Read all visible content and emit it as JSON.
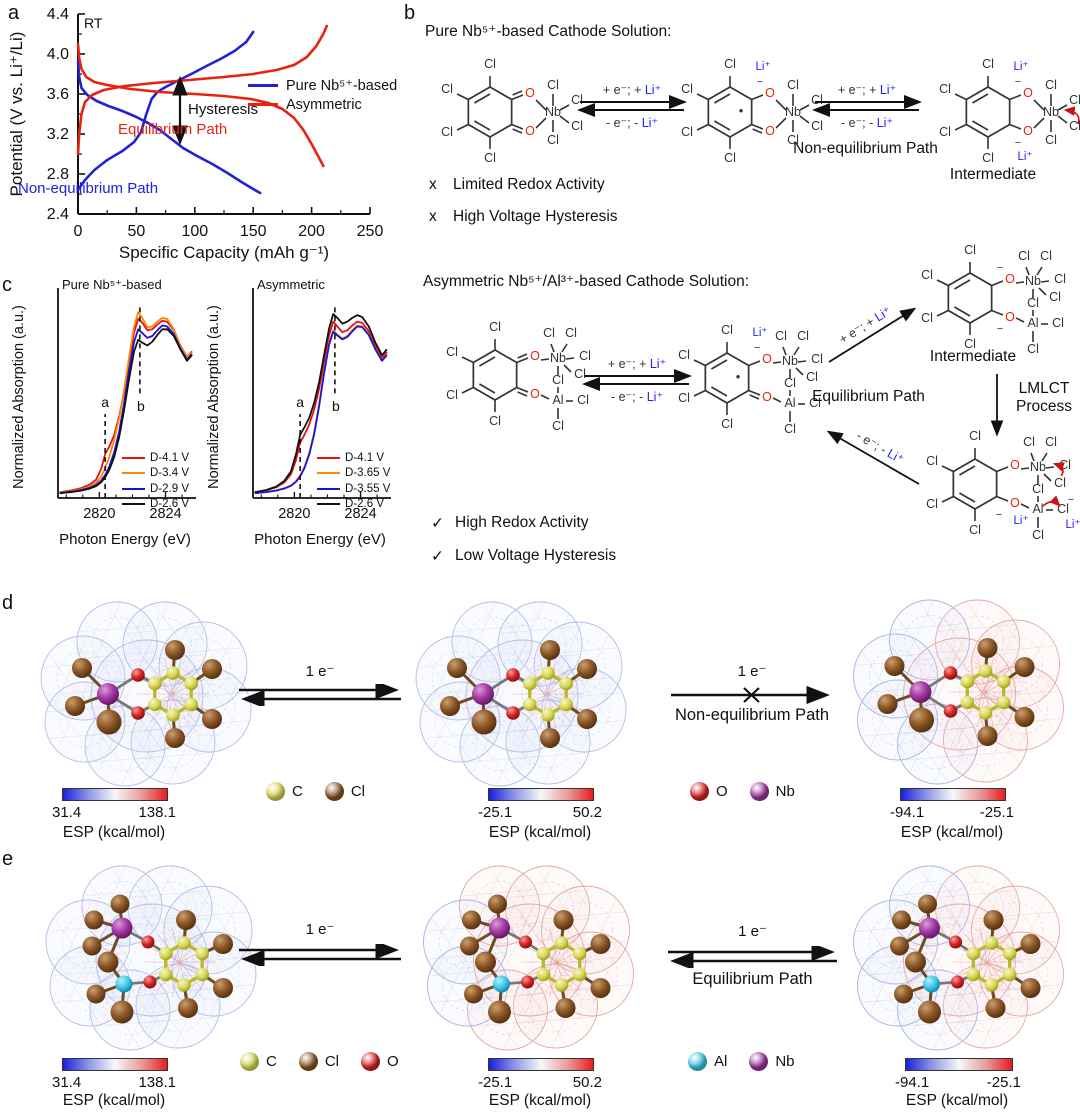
{
  "panels": {
    "a": "a",
    "b": "b",
    "c": "c",
    "d": "d",
    "e": "e"
  },
  "atoms": {
    "cl": "Cl",
    "o": "O",
    "nb": "Nb",
    "al": "Al",
    "li": "Li⁺",
    "minus": "−",
    "radical": "•"
  },
  "element_colors": {
    "C": "#d9d958",
    "Cl": "#8a5424",
    "O": "#d62222",
    "Nb": "#a035a0",
    "Al": "#3cc8e8"
  },
  "panel_a": {
    "corner_note": "RT",
    "ylabel": "Potential (V vs. Li⁺/Li)",
    "xlabel": "Specific Capacity (mAh g⁻¹)",
    "legend": [
      {
        "label": "Pure Nb⁵⁺-based",
        "color": "#2121d6"
      },
      {
        "label": "Asymmetric",
        "color": "#e8220f"
      }
    ],
    "ann_hysteresis": "Hysteresis",
    "ann_equilibrium": "Equilibrium Path",
    "ann_non_equilibrium": "Non-equilibrium Path"
  },
  "panel_b": {
    "title_pure": "Pure Nb⁵⁺-based Cathode Solution:",
    "title_asym": "Asymmetric Nb⁵⁺/Al³⁺-based Cathode Solution:",
    "fwd_pre": "+ e⁻; + ",
    "bwd_pre": "- e⁻; - ",
    "li": "Li⁺",
    "non_eq_path": "Non-equilibrium Path",
    "eq_path": "Equilibrium Path",
    "intermediate1": "Intermediate",
    "intermediate2": "Intermediate",
    "lmlct1": "LMLCT",
    "lmlct2": "Process",
    "cons": [
      {
        "mark": "x",
        "text": "Limited Redox Activity"
      },
      {
        "mark": "x",
        "text": "High Voltage Hysteresis"
      }
    ],
    "pros": [
      {
        "mark": "✓",
        "text": "High Redox Activity"
      },
      {
        "mark": "✓",
        "text": "Low Voltage Hysteresis"
      }
    ]
  },
  "panel_c": {
    "ylabel": "Normalized Absorption (a.u.)",
    "xlabel": "Photon Energy (eV)",
    "plot1_title": "Pure Nb⁵⁺-based",
    "plot2_title": "Asymmetric",
    "mark_a": "a",
    "mark_b": "b",
    "legend1": [
      {
        "label": "D-4.1 V",
        "color": "#e81010"
      },
      {
        "label": "D-3.4 V",
        "color": "#ff8800"
      },
      {
        "label": "D-2.9 V",
        "color": "#1515e0"
      },
      {
        "label": "D-2.6 V",
        "color": "#111111"
      }
    ],
    "legend2": [
      {
        "label": "D-4.1 V",
        "color": "#e81010"
      },
      {
        "label": "D-3.65 V",
        "color": "#ff8800"
      },
      {
        "label": "D-3.55 V",
        "color": "#1515e0"
      },
      {
        "label": "D-2.6 V",
        "color": "#111111"
      }
    ]
  },
  "panel_d": {
    "arrow1": "1 e⁻",
    "arrow2": "1 e⁻",
    "arrow2_sub": "Non-equilibrium Path",
    "bars": [
      {
        "min": "31.4",
        "max": "138.1",
        "title": "ESP (kcal/mol)"
      },
      {
        "min": "-25.1",
        "max": "50.2",
        "title": "ESP (kcal/mol)"
      },
      {
        "min": "-94.1",
        "max": "-25.1",
        "title": "ESP (kcal/mol)"
      }
    ],
    "legendA": [
      {
        "symbol": "C"
      },
      {
        "symbol": "Cl"
      }
    ],
    "legendB": [
      {
        "symbol": "O"
      },
      {
        "symbol": "Nb"
      }
    ]
  },
  "panel_e": {
    "arrow1": "1 e⁻",
    "arrow2": "1 e⁻",
    "arrow2_sub": "Equilibrium Path",
    "bars": [
      {
        "min": "31.4",
        "max": "138.1",
        "title": "ESP (kcal/mol)"
      },
      {
        "min": "-25.1",
        "max": "50.2",
        "title": "ESP (kcal/mol)"
      },
      {
        "min": "-94.1",
        "max": "-25.1",
        "title": "ESP (kcal/mol)"
      }
    ],
    "legendA": [
      {
        "symbol": "C"
      },
      {
        "symbol": "Cl"
      },
      {
        "symbol": "O"
      }
    ],
    "legendB": [
      {
        "symbol": "Al"
      },
      {
        "symbol": "Nb"
      }
    ]
  },
  "chart_data": [
    {
      "id": "galvanostatic",
      "type": "line",
      "title": "",
      "xlabel": "Specific Capacity (mAh g⁻¹)",
      "ylabel": "Potential (V vs. Li⁺/Li)",
      "xlim": [
        0,
        250
      ],
      "ylim": [
        2.4,
        4.4
      ],
      "xticks": [
        0,
        50,
        100,
        150,
        200,
        250
      ],
      "xtick_labels": [
        "0",
        "50",
        "100",
        "150",
        "200",
        "250"
      ],
      "yticks": [
        2.4,
        2.8,
        3.2,
        3.6,
        4.0,
        4.4
      ],
      "ytick_labels": [
        "2.4",
        "2.8",
        "3.2",
        "3.6",
        "4.0",
        "4.4"
      ],
      "grid": false,
      "legend_position": "right-middle",
      "series": [
        {
          "name": "Pure Nb⁵⁺-based charge",
          "color": "#2121d6",
          "points": [
            [
              0,
              2.64
            ],
            [
              6,
              2.74
            ],
            [
              14,
              2.84
            ],
            [
              25,
              2.94
            ],
            [
              38,
              3.03
            ],
            [
              48,
              3.12
            ],
            [
              54,
              3.22
            ],
            [
              58,
              3.38
            ],
            [
              63,
              3.55
            ],
            [
              68,
              3.62
            ],
            [
              75,
              3.67
            ],
            [
              85,
              3.73
            ],
            [
              97,
              3.8
            ],
            [
              110,
              3.88
            ],
            [
              122,
              3.95
            ],
            [
              134,
              4.03
            ],
            [
              144,
              4.12
            ],
            [
              150,
              4.22
            ]
          ]
        },
        {
          "name": "Pure Nb⁵⁺-based discharge",
          "color": "#2121d6",
          "points": [
            [
              0,
              3.93
            ],
            [
              1,
              3.77
            ],
            [
              3,
              3.66
            ],
            [
              8,
              3.59
            ],
            [
              16,
              3.53
            ],
            [
              26,
              3.48
            ],
            [
              38,
              3.43
            ],
            [
              50,
              3.37
            ],
            [
              60,
              3.31
            ],
            [
              70,
              3.24
            ],
            [
              80,
              3.15
            ],
            [
              90,
              3.06
            ],
            [
              102,
              2.98
            ],
            [
              115,
              2.9
            ],
            [
              128,
              2.81
            ],
            [
              140,
              2.72
            ],
            [
              150,
              2.65
            ],
            [
              156,
              2.61
            ]
          ]
        },
        {
          "name": "Asymmetric charge",
          "color": "#e8220f",
          "points": [
            [
              0,
              3.0
            ],
            [
              1,
              3.2
            ],
            [
              3,
              3.4
            ],
            [
              6,
              3.52
            ],
            [
              12,
              3.59
            ],
            [
              22,
              3.64
            ],
            [
              40,
              3.68
            ],
            [
              65,
              3.71
            ],
            [
              95,
              3.74
            ],
            [
              125,
              3.77
            ],
            [
              150,
              3.8
            ],
            [
              170,
              3.84
            ],
            [
              185,
              3.89
            ],
            [
              196,
              3.97
            ],
            [
              204,
              4.08
            ],
            [
              210,
              4.2
            ],
            [
              213,
              4.28
            ]
          ]
        },
        {
          "name": "Asymmetric discharge",
          "color": "#e8220f",
          "points": [
            [
              0,
              4.1
            ],
            [
              1,
              3.96
            ],
            [
              3,
              3.85
            ],
            [
              7,
              3.77
            ],
            [
              14,
              3.72
            ],
            [
              25,
              3.69
            ],
            [
              45,
              3.65
            ],
            [
              70,
              3.62
            ],
            [
              100,
              3.6
            ],
            [
              125,
              3.58
            ],
            [
              148,
              3.55
            ],
            [
              163,
              3.51
            ],
            [
              175,
              3.45
            ],
            [
              185,
              3.36
            ],
            [
              193,
              3.24
            ],
            [
              200,
              3.1
            ],
            [
              206,
              2.97
            ],
            [
              210,
              2.88
            ]
          ]
        }
      ],
      "annotations": [
        "RT",
        "Hysteresis",
        "Equilibrium Path",
        "Non-equilibrium Path"
      ]
    },
    {
      "id": "xas-pure",
      "type": "line",
      "title": "Pure Nb⁵⁺-based",
      "xlabel": "Photon Energy (eV)",
      "ylabel": "Normalized Absorption (a.u.)",
      "xlim": [
        2817.5,
        2825.6
      ],
      "ylim": [
        0,
        1.06
      ],
      "xticks": [
        2820,
        2824
      ],
      "xtick_labels": [
        "2820",
        "2824"
      ],
      "minor_xticks": [
        2818,
        2819,
        2821,
        2822,
        2823,
        2825
      ],
      "dashed_marks": [
        {
          "label": "a",
          "x": 2820.35
        },
        {
          "label": "b",
          "x": 2822.45
        }
      ],
      "x": [
        2817.6,
        2818.3,
        2818.9,
        2819.4,
        2819.8,
        2820.1,
        2820.35,
        2820.6,
        2820.9,
        2821.2,
        2821.5,
        2821.8,
        2822.1,
        2822.35,
        2822.6,
        2822.9,
        2823.2,
        2823.5,
        2823.8,
        2824.1,
        2824.5,
        2824.9,
        2825.3,
        2825.6
      ],
      "series": [
        {
          "name": "D-4.1 V",
          "color": "#e81010",
          "y": [
            0.03,
            0.04,
            0.052,
            0.07,
            0.095,
            0.15,
            0.23,
            0.27,
            0.33,
            0.43,
            0.56,
            0.72,
            0.87,
            0.94,
            0.92,
            0.88,
            0.885,
            0.91,
            0.93,
            0.925,
            0.88,
            0.8,
            0.74,
            0.77
          ]
        },
        {
          "name": "D-3.4 V",
          "color": "#ff8800",
          "y": [
            0.028,
            0.036,
            0.046,
            0.06,
            0.08,
            0.11,
            0.155,
            0.215,
            0.305,
            0.42,
            0.57,
            0.74,
            0.9,
            0.975,
            0.945,
            0.895,
            0.9,
            0.925,
            0.945,
            0.94,
            0.885,
            0.8,
            0.735,
            0.765
          ]
        },
        {
          "name": "D-2.9 V",
          "color": "#1515e0",
          "y": [
            0.026,
            0.033,
            0.042,
            0.053,
            0.068,
            0.09,
            0.12,
            0.165,
            0.24,
            0.35,
            0.5,
            0.67,
            0.82,
            0.885,
            0.865,
            0.84,
            0.85,
            0.88,
            0.905,
            0.9,
            0.86,
            0.785,
            0.725,
            0.755
          ]
        },
        {
          "name": "D-2.6 V",
          "color": "#111111",
          "y": [
            0.025,
            0.031,
            0.039,
            0.049,
            0.062,
            0.082,
            0.108,
            0.148,
            0.215,
            0.32,
            0.465,
            0.625,
            0.77,
            0.83,
            0.815,
            0.8,
            0.82,
            0.855,
            0.885,
            0.885,
            0.85,
            0.78,
            0.72,
            0.75
          ]
        }
      ]
    },
    {
      "id": "xas-asymmetric",
      "type": "line",
      "title": "Asymmetric",
      "xlabel": "Photon Energy (eV)",
      "ylabel": "Normalized Absorption (a.u.)",
      "xlim": [
        2817.5,
        2825.6
      ],
      "ylim": [
        0,
        1.06
      ],
      "xticks": [
        2820,
        2824
      ],
      "xtick_labels": [
        "2820",
        "2824"
      ],
      "minor_xticks": [
        2818,
        2819,
        2821,
        2822,
        2823,
        2825
      ],
      "dashed_marks": [
        {
          "label": "a",
          "x": 2820.35
        },
        {
          "label": "b",
          "x": 2822.45
        }
      ],
      "x": [
        2817.6,
        2818.3,
        2818.9,
        2819.4,
        2819.8,
        2820.1,
        2820.35,
        2820.6,
        2820.9,
        2821.2,
        2821.5,
        2821.8,
        2822.1,
        2822.35,
        2822.6,
        2822.9,
        2823.2,
        2823.5,
        2823.8,
        2824.1,
        2824.5,
        2824.9,
        2825.3,
        2825.6
      ],
      "series": [
        {
          "name": "D-4.1 V",
          "color": "#e81010",
          "y": [
            0.03,
            0.04,
            0.056,
            0.082,
            0.125,
            0.2,
            0.29,
            0.33,
            0.385,
            0.465,
            0.575,
            0.715,
            0.855,
            0.925,
            0.9,
            0.87,
            0.88,
            0.905,
            0.925,
            0.92,
            0.875,
            0.795,
            0.735,
            0.765
          ]
        },
        {
          "name": "D-3.65 V",
          "color": "#ff8800",
          "y": [
            0.026,
            0.032,
            0.04,
            0.051,
            0.066,
            0.088,
            0.118,
            0.162,
            0.235,
            0.345,
            0.495,
            0.665,
            0.815,
            0.88,
            0.858,
            0.838,
            0.85,
            0.88,
            0.905,
            0.9,
            0.858,
            0.782,
            0.722,
            0.752
          ]
        },
        {
          "name": "D-3.55 V",
          "color": "#1515e0",
          "y": [
            0.025,
            0.031,
            0.039,
            0.05,
            0.064,
            0.085,
            0.113,
            0.155,
            0.228,
            0.335,
            0.485,
            0.655,
            0.805,
            0.872,
            0.852,
            0.832,
            0.845,
            0.875,
            0.9,
            0.897,
            0.855,
            0.78,
            0.72,
            0.75
          ]
        },
        {
          "name": "D-2.6 V",
          "color": "#111111",
          "y": [
            0.03,
            0.042,
            0.06,
            0.09,
            0.14,
            0.23,
            0.33,
            0.37,
            0.42,
            0.5,
            0.61,
            0.75,
            0.89,
            0.965,
            0.945,
            0.915,
            0.925,
            0.945,
            0.96,
            0.95,
            0.9,
            0.815,
            0.75,
            0.78
          ]
        }
      ]
    }
  ]
}
